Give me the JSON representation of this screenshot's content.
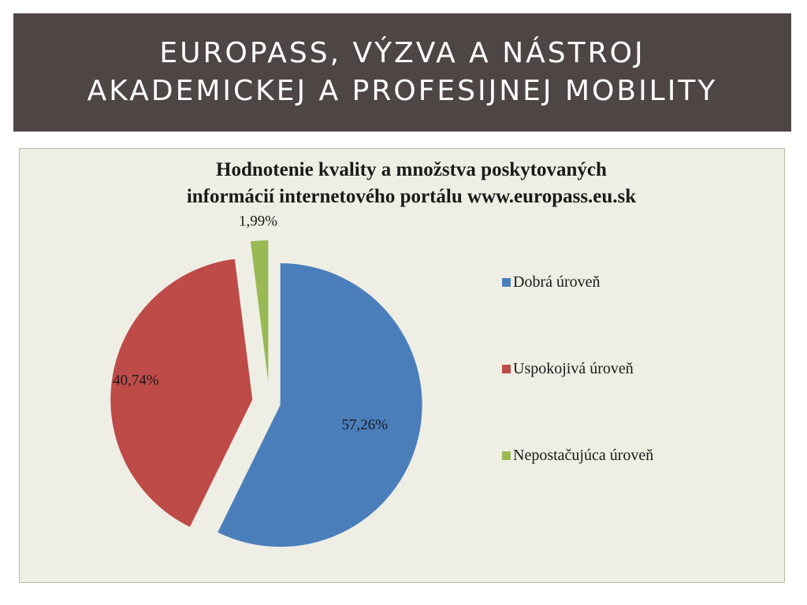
{
  "slide": {
    "title_lines": [
      "EUROPASS,  VÝZVA A NÁSTROJ",
      "AKADEMICKEJ A PROFESIJNEJ MOBILITY"
    ]
  },
  "chart_data": {
    "type": "pie",
    "title_lines": [
      "Hodnotenie kvality a množstva poskytovaných",
      "informácií internetového portálu www.europass.eu.sk"
    ],
    "legend_position": "right",
    "slices": [
      {
        "name": "Dobrá úroveň",
        "value": 57.26,
        "label": "57,26%",
        "color": "#4a7ebb"
      },
      {
        "name": "Uspokojivá úroveň",
        "value": 40.74,
        "label": "40,74%",
        "color": "#be4b48"
      },
      {
        "name": "Nepostačujúca úroveň",
        "value": 1.99,
        "label": "1,99%",
        "color": "#98b954"
      }
    ]
  }
}
